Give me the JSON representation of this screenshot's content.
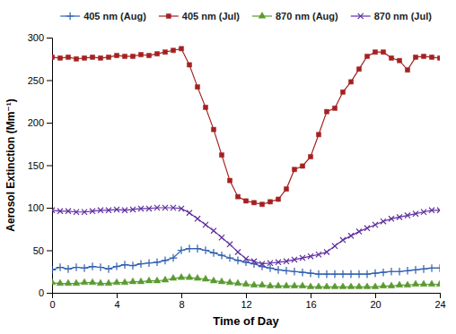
{
  "chart_data": {
    "type": "line",
    "xlabel": "Time of Day",
    "ylabel": "Aerosol Extinction (Mm⁻¹)",
    "x": [
      0,
      0.5,
      1,
      1.5,
      2,
      2.5,
      3,
      3.5,
      4,
      4.5,
      5,
      5.5,
      6,
      6.5,
      7,
      7.5,
      8,
      8.5,
      9,
      9.5,
      10,
      10.5,
      11,
      11.5,
      12,
      12.5,
      13,
      13.5,
      14,
      14.5,
      15,
      15.5,
      16,
      16.5,
      17,
      17.5,
      18,
      18.5,
      19,
      19.5,
      20,
      20.5,
      21,
      21.5,
      22,
      22.5,
      23,
      23.5,
      24
    ],
    "series": [
      {
        "name": "405 nm (Aug)",
        "color": "#3060B0",
        "marker": "plus",
        "values": [
          27,
          30,
          28,
          30,
          29,
          31,
          30,
          28,
          31,
          33,
          32,
          34,
          35,
          36,
          38,
          41,
          50,
          52,
          52,
          50,
          47,
          44,
          41,
          38,
          36,
          34,
          31,
          29,
          27,
          26,
          25,
          24,
          23,
          22,
          22,
          22,
          22,
          22,
          22,
          22,
          23,
          24,
          25,
          25,
          26,
          27,
          28,
          29,
          29
        ]
      },
      {
        "name": "405 nm (Jul)",
        "color": "#A52020",
        "marker": "square",
        "values": [
          277,
          276,
          277,
          275,
          276,
          277,
          276,
          277,
          279,
          278,
          278,
          280,
          279,
          281,
          283,
          285,
          287,
          268,
          242,
          218,
          192,
          162,
          132,
          113,
          108,
          106,
          104,
          107,
          110,
          122,
          145,
          149,
          160,
          186,
          213,
          217,
          236,
          248,
          263,
          278,
          283,
          283,
          276,
          273,
          262,
          277,
          278,
          277,
          276
        ]
      },
      {
        "name": "870 nm (Aug)",
        "color": "#5A9A30",
        "marker": "triangle",
        "values": [
          12,
          11,
          11,
          11,
          12,
          12,
          11,
          11,
          12,
          12,
          13,
          13,
          14,
          14,
          15,
          17,
          18,
          18,
          17,
          16,
          14,
          13,
          12,
          11,
          10,
          9,
          9,
          8,
          8,
          8,
          8,
          8,
          7,
          7,
          7,
          7,
          7,
          7,
          7,
          7,
          7,
          8,
          8,
          9,
          9,
          10,
          10,
          10,
          10
        ]
      },
      {
        "name": "870 nm (Jul)",
        "color": "#6030A0",
        "marker": "cross",
        "values": [
          97,
          96,
          96,
          95,
          95,
          96,
          97,
          97,
          98,
          97,
          98,
          99,
          99,
          100,
          100,
          100,
          99,
          94,
          87,
          80,
          73,
          65,
          57,
          48,
          40,
          37,
          34,
          35,
          36,
          37,
          39,
          41,
          43,
          45,
          48,
          55,
          62,
          67,
          72,
          76,
          80,
          84,
          87,
          89,
          91,
          93,
          95,
          97,
          97
        ]
      }
    ],
    "xlim": [
      0,
      24
    ],
    "ylim": [
      0,
      300
    ],
    "xticks": [
      0,
      4,
      8,
      12,
      16,
      20,
      24
    ],
    "yticks": [
      0,
      50,
      100,
      150,
      200,
      250,
      300
    ],
    "legend": "top",
    "grid": false
  }
}
